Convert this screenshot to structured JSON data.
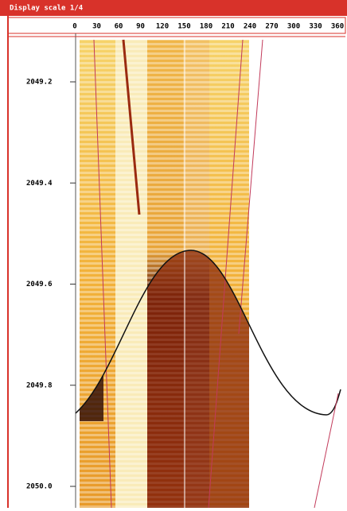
{
  "header": {
    "title": "Display scale 1/4"
  },
  "azimuth_scale": {
    "labels": [
      "0",
      "30",
      "60",
      "90",
      "120",
      "150",
      "180",
      "210",
      "240",
      "270",
      "300",
      "330",
      "360"
    ]
  },
  "depth_scale": {
    "labels": [
      "2049.2",
      "2049.4",
      "2049.6",
      "2049.8",
      "2050.0"
    ]
  }
}
